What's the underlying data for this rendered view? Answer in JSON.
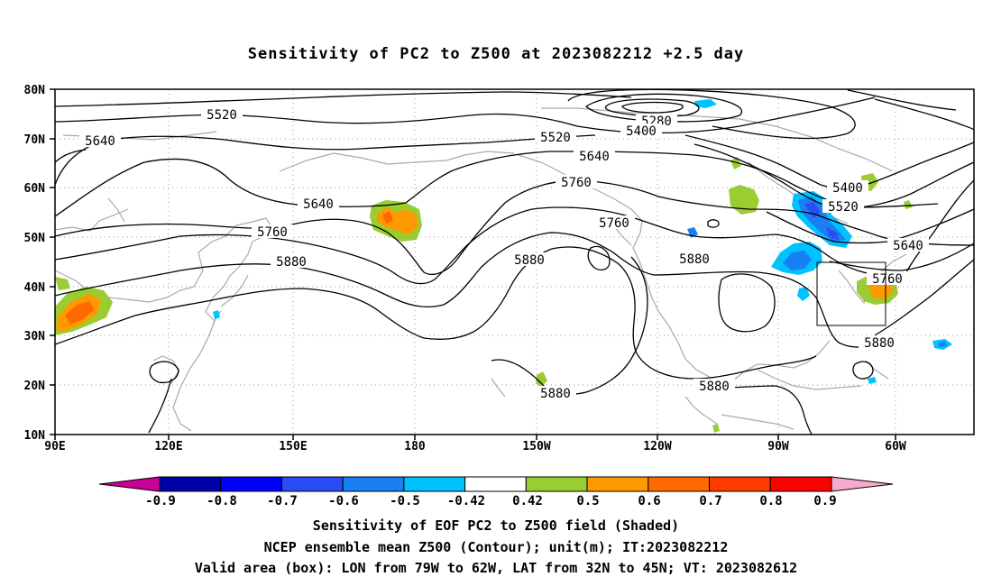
{
  "title": "Sensitivity of PC2 to Z500 at 2023082212 +2.5 day",
  "lat_labels": [
    "80N",
    "70N",
    "60N",
    "50N",
    "40N",
    "30N",
    "20N",
    "10N"
  ],
  "lon_labels": [
    "90E",
    "120E",
    "150E",
    "180",
    "150W",
    "120W",
    "90W",
    "60W"
  ],
  "contour_labels": [
    "5520",
    "5640",
    "5640",
    "5760",
    "5880",
    "5280",
    "5400",
    "5520",
    "5640",
    "5760",
    "5760",
    "5880",
    "5880",
    "5880",
    "5400",
    "5520",
    "5640",
    "5760",
    "5880",
    "5880"
  ],
  "colorbar": {
    "labels": [
      "-0.9",
      "-0.8",
      "-0.7",
      "-0.6",
      "-0.5",
      "-0.42",
      "0.42",
      "0.5",
      "0.6",
      "0.7",
      "0.8",
      "0.9"
    ],
    "colors": [
      "#0000aa",
      "#0000ff",
      "#2a4cf5",
      "#1a7ff2",
      "#00c2ff",
      "#ffffff",
      "#9acd32",
      "#ff9900",
      "#ff6a00",
      "#ff3b00",
      "#ff0000"
    ],
    "left_arrow_color": "#cc0099",
    "right_arrow_color": "#f8a8cc"
  },
  "captions": [
    "Sensitivity of EOF PC2 to Z500 field (Shaded)",
    "NCEP ensemble mean Z500 (Contour); unit(m); IT:2023082212",
    "Valid area (box): LON from 79W to 62W, LAT from 32N to 45N; VT: 2023082612"
  ]
}
